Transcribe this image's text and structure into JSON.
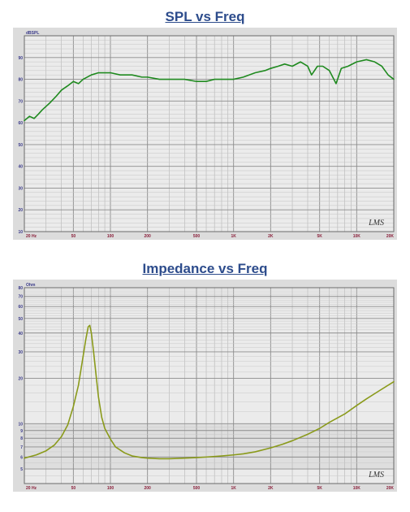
{
  "chart_data": [
    {
      "type": "line",
      "title": "SPL vs Freq",
      "ylabel": "dBSPL",
      "xlabel": "",
      "xscale": "log",
      "xlim": [
        20,
        20000
      ],
      "ylim": [
        10,
        100
      ],
      "xticks": [
        {
          "value": 20,
          "label": "20 Hz"
        },
        {
          "value": 50,
          "label": "50"
        },
        {
          "value": 100,
          "label": "100"
        },
        {
          "value": 200,
          "label": "200"
        },
        {
          "value": 500,
          "label": "500"
        },
        {
          "value": 1000,
          "label": "1K"
        },
        {
          "value": 2000,
          "label": "2K"
        },
        {
          "value": 5000,
          "label": "5K"
        },
        {
          "value": 10000,
          "label": "10K"
        },
        {
          "value": 20000,
          "label": "20K"
        }
      ],
      "yticks": [
        {
          "value": 10,
          "label": "10"
        },
        {
          "value": 20,
          "label": "20"
        },
        {
          "value": 30,
          "label": "30"
        },
        {
          "value": 40,
          "label": "40"
        },
        {
          "value": 50,
          "label": "50"
        },
        {
          "value": 60,
          "label": "60"
        },
        {
          "value": 70,
          "label": "70"
        },
        {
          "value": 80,
          "label": "80"
        },
        {
          "value": 90,
          "label": "90"
        }
      ],
      "grid": true,
      "watermark": "LMS",
      "series": [
        {
          "color": "#1f8a1f",
          "x": [
            20,
            22,
            24,
            26,
            28,
            32,
            36,
            40,
            45,
            50,
            55,
            60,
            70,
            80,
            90,
            100,
            120,
            150,
            180,
            200,
            250,
            300,
            400,
            500,
            600,
            700,
            800,
            1000,
            1200,
            1500,
            1800,
            2000,
            2300,
            2600,
            3000,
            3500,
            4000,
            4300,
            4800,
            5300,
            6000,
            6800,
            7500,
            8500,
            10000,
            12000,
            14000,
            16000,
            18000,
            20000
          ],
          "y": [
            61,
            63,
            62,
            64,
            66,
            69,
            72,
            75,
            77,
            79,
            78,
            80,
            82,
            83,
            83,
            83,
            82,
            82,
            81,
            81,
            80,
            80,
            80,
            79,
            79,
            80,
            80,
            80,
            81,
            83,
            84,
            85,
            86,
            87,
            86,
            88,
            86,
            82,
            86,
            86,
            84,
            78,
            85,
            86,
            88,
            89,
            88,
            86,
            82,
            80
          ]
        }
      ]
    },
    {
      "type": "line",
      "title": "Impedance vs Freq",
      "ylabel": "Ohm",
      "xlabel": "",
      "xscale": "log",
      "yscale": "log",
      "xlim": [
        20,
        20000
      ],
      "ylim": [
        4,
        80
      ],
      "xticks": [
        {
          "value": 20,
          "label": "20 Hz"
        },
        {
          "value": 50,
          "label": "50"
        },
        {
          "value": 100,
          "label": "100"
        },
        {
          "value": 200,
          "label": "200"
        },
        {
          "value": 500,
          "label": "500"
        },
        {
          "value": 1000,
          "label": "1K"
        },
        {
          "value": 2000,
          "label": "2K"
        },
        {
          "value": 5000,
          "label": "5K"
        },
        {
          "value": 10000,
          "label": "10K"
        },
        {
          "value": 20000,
          "label": "20K"
        }
      ],
      "yticks": [
        {
          "value": 5,
          "label": "5"
        },
        {
          "value": 6,
          "label": "6"
        },
        {
          "value": 7,
          "label": "7"
        },
        {
          "value": 8,
          "label": "8"
        },
        {
          "value": 9,
          "label": "9"
        },
        {
          "value": 10,
          "label": "10"
        },
        {
          "value": 20,
          "label": "20"
        },
        {
          "value": 30,
          "label": "30"
        },
        {
          "value": 40,
          "label": "40"
        },
        {
          "value": 50,
          "label": "50"
        },
        {
          "value": 60,
          "label": "60"
        },
        {
          "value": 70,
          "label": "70"
        },
        {
          "value": 80,
          "label": "80"
        }
      ],
      "grid": true,
      "watermark": "LMS",
      "series": [
        {
          "color": "#8a9a1a",
          "x": [
            20,
            25,
            30,
            35,
            40,
            45,
            50,
            55,
            60,
            63,
            66,
            68,
            70,
            73,
            76,
            80,
            85,
            90,
            100,
            110,
            130,
            150,
            180,
            200,
            250,
            300,
            400,
            500,
            600,
            800,
            1000,
            1200,
            1500,
            2000,
            2500,
            3000,
            4000,
            5000,
            6000,
            8000,
            10000,
            12000,
            15000,
            20000
          ],
          "y": [
            5.9,
            6.2,
            6.6,
            7.2,
            8.2,
            9.8,
            13,
            18,
            28,
            36,
            44,
            45,
            40,
            30,
            22,
            15,
            11,
            9.3,
            7.9,
            7,
            6.4,
            6.1,
            5.95,
            5.9,
            5.85,
            5.85,
            5.9,
            5.95,
            6,
            6.1,
            6.2,
            6.3,
            6.5,
            6.9,
            7.3,
            7.7,
            8.5,
            9.3,
            10.2,
            11.6,
            13.2,
            14.6,
            16.4,
            19
          ]
        }
      ]
    }
  ]
}
